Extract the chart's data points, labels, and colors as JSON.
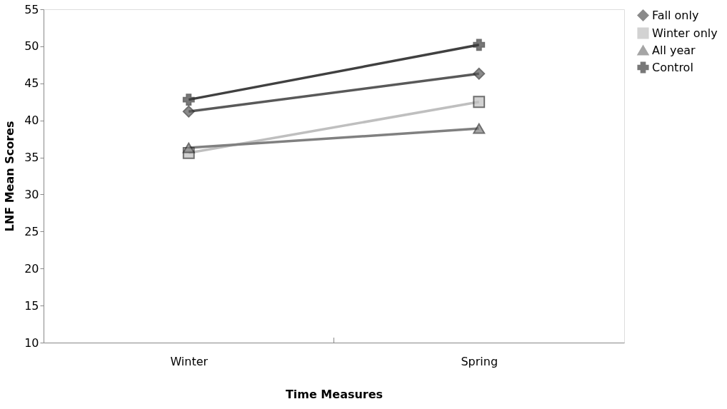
{
  "chart_data": {
    "type": "line",
    "xlabel": "Time Measures",
    "ylabel": "LNF Mean Scores",
    "categories": [
      "Winter",
      "Spring"
    ],
    "series": [
      {
        "name": "Fall only",
        "color": "#595959",
        "marker": "diamond",
        "values": [
          41.2,
          46.3
        ]
      },
      {
        "name": "Winter only",
        "color": "#bfbfbf",
        "marker": "square",
        "values": [
          35.6,
          42.5
        ]
      },
      {
        "name": "All year",
        "color": "#808080",
        "marker": "triangle",
        "values": [
          36.3,
          38.9
        ]
      },
      {
        "name": "Control",
        "color": "#404040",
        "marker": "cross",
        "values": [
          42.8,
          50.2
        ]
      }
    ],
    "ylim": [
      10,
      55
    ],
    "yticks": [
      10,
      15,
      20,
      25,
      30,
      35,
      40,
      45,
      50,
      55
    ],
    "grid": false,
    "legend": "right"
  }
}
